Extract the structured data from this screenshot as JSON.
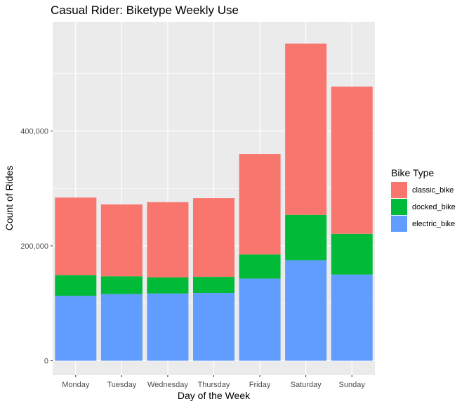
{
  "chart_data": {
    "type": "bar",
    "stacked": true,
    "title": "Casual Rider: Biketype Weekly Use",
    "xlabel": "Day of the Week",
    "ylabel": "Count of Rides",
    "categories": [
      "Monday",
      "Tuesday",
      "Wednesday",
      "Thursday",
      "Friday",
      "Saturday",
      "Sunday"
    ],
    "series": [
      {
        "name": "electric_bike",
        "color": "#619CFF",
        "values": [
          113000,
          116000,
          117000,
          118000,
          143000,
          175000,
          150000
        ]
      },
      {
        "name": "docked_bike",
        "color": "#00BA38",
        "values": [
          36000,
          31000,
          28000,
          28000,
          42000,
          79000,
          71000
        ]
      },
      {
        "name": "classic_bike",
        "color": "#F8766D",
        "values": [
          135000,
          125000,
          131000,
          137000,
          175000,
          298000,
          256000
        ]
      }
    ],
    "ylim": [
      -25000,
      590000
    ],
    "yticks": [
      0,
      200000,
      400000
    ],
    "ytick_labels": [
      "0",
      "200,000",
      "400,000"
    ],
    "grid": true,
    "panel_background": "#EBEBEB",
    "legend": {
      "title": "Bike Type",
      "position": "right",
      "order": [
        "classic_bike",
        "docked_bike",
        "electric_bike"
      ]
    }
  }
}
